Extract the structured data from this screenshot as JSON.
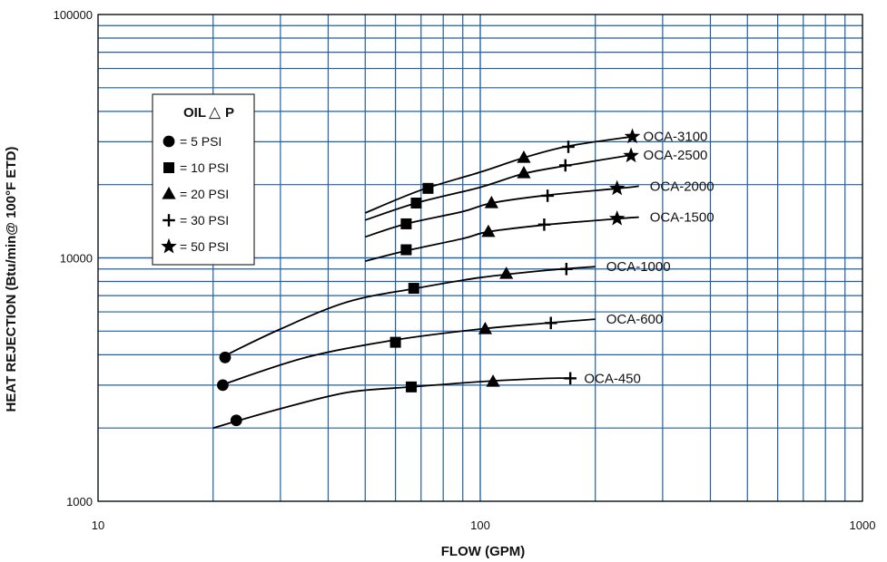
{
  "chart_data": {
    "type": "line",
    "xscale": "log",
    "yscale": "log",
    "xlim": [
      10,
      1000
    ],
    "ylim": [
      1000,
      100000
    ],
    "xlabel": "FLOW (GPM)",
    "ylabel": "HEAT REJECTION (Btu/min@ 100°F ETD)",
    "xticks": [
      "10",
      "100",
      "1000"
    ],
    "yticks": [
      "1000",
      "10000",
      "100000"
    ],
    "grid": true,
    "grid_color": "#1f5fa6",
    "line_color": "#000000",
    "legend": {
      "title_left": "OIL",
      "title_symbol": "△",
      "title_right": "P",
      "placement": "top-left",
      "items": [
        {
          "marker": "circle",
          "label": "= 5 PSI"
        },
        {
          "marker": "square",
          "label": "= 10 PSI"
        },
        {
          "marker": "triangle",
          "label": "= 20 PSI"
        },
        {
          "marker": "plus",
          "label": "= 30 PSI"
        },
        {
          "marker": "star",
          "label": "= 50 PSI"
        }
      ]
    },
    "series": [
      {
        "name": "OCA-3100",
        "curve": [
          [
            50,
            15300
          ],
          [
            70,
            19000
          ],
          [
            100,
            22500
          ],
          [
            130,
            25800
          ],
          [
            170,
            28800
          ],
          [
            250,
            31500
          ]
        ],
        "markers": [
          {
            "x": 73,
            "y": 19300,
            "marker": "square"
          },
          {
            "x": 130,
            "y": 25800,
            "marker": "triangle"
          },
          {
            "x": 170,
            "y": 28600,
            "marker": "plus"
          },
          {
            "x": 250,
            "y": 31500,
            "marker": "star"
          }
        ]
      },
      {
        "name": "OCA-2500",
        "curve": [
          [
            50,
            14300
          ],
          [
            68,
            16800
          ],
          [
            100,
            19500
          ],
          [
            130,
            22200
          ],
          [
            170,
            24000
          ],
          [
            250,
            26500
          ]
        ],
        "markers": [
          {
            "x": 68,
            "y": 16800,
            "marker": "square"
          },
          {
            "x": 130,
            "y": 22300,
            "marker": "triangle"
          },
          {
            "x": 167,
            "y": 24000,
            "marker": "plus"
          },
          {
            "x": 248,
            "y": 26300,
            "marker": "star"
          }
        ]
      },
      {
        "name": "OCA-2000",
        "curve": [
          [
            50,
            12200
          ],
          [
            64,
            13800
          ],
          [
            90,
            15500
          ],
          [
            107,
            16800
          ],
          [
            150,
            18100
          ],
          [
            230,
            19300
          ],
          [
            260,
            19700
          ]
        ],
        "markers": [
          {
            "x": 64,
            "y": 13800,
            "marker": "square"
          },
          {
            "x": 107,
            "y": 16800,
            "marker": "triangle"
          },
          {
            "x": 150,
            "y": 18000,
            "marker": "plus"
          },
          {
            "x": 228,
            "y": 19300,
            "marker": "star"
          }
        ]
      },
      {
        "name": "OCA-1500",
        "curve": [
          [
            50,
            9700
          ],
          [
            64,
            10700
          ],
          [
            90,
            12000
          ],
          [
            105,
            12800
          ],
          [
            150,
            13700
          ],
          [
            230,
            14500
          ],
          [
            260,
            14700
          ]
        ],
        "markers": [
          {
            "x": 64,
            "y": 10800,
            "marker": "square"
          },
          {
            "x": 105,
            "y": 12800,
            "marker": "triangle"
          },
          {
            "x": 147,
            "y": 13700,
            "marker": "plus"
          },
          {
            "x": 228,
            "y": 14500,
            "marker": "star"
          }
        ]
      },
      {
        "name": "OCA-1000",
        "curve": [
          [
            21,
            3900
          ],
          [
            30,
            5100
          ],
          [
            45,
            6600
          ],
          [
            68,
            7500
          ],
          [
            100,
            8300
          ],
          [
            150,
            8900
          ],
          [
            200,
            9200
          ]
        ],
        "markers": [
          {
            "x": 21.5,
            "y": 3900,
            "marker": "circle"
          },
          {
            "x": 67,
            "y": 7500,
            "marker": "square"
          },
          {
            "x": 117,
            "y": 8600,
            "marker": "triangle"
          },
          {
            "x": 168,
            "y": 9000,
            "marker": "plus"
          }
        ]
      },
      {
        "name": "OCA-600",
        "curve": [
          [
            21,
            3000
          ],
          [
            35,
            3900
          ],
          [
            60,
            4600
          ],
          [
            100,
            5100
          ],
          [
            150,
            5400
          ],
          [
            200,
            5600
          ]
        ],
        "markers": [
          {
            "x": 21.2,
            "y": 3000,
            "marker": "circle"
          },
          {
            "x": 60,
            "y": 4500,
            "marker": "square"
          },
          {
            "x": 103,
            "y": 5100,
            "marker": "triangle"
          },
          {
            "x": 153,
            "y": 5400,
            "marker": "plus"
          }
        ]
      },
      {
        "name": "OCA-450",
        "curve": [
          [
            20,
            2000
          ],
          [
            30,
            2400
          ],
          [
            45,
            2800
          ],
          [
            66,
            2950
          ],
          [
            100,
            3100
          ],
          [
            150,
            3200
          ],
          [
            175,
            3200
          ]
        ],
        "markers": [
          {
            "x": 23,
            "y": 2150,
            "marker": "circle"
          },
          {
            "x": 66,
            "y": 2950,
            "marker": "square"
          },
          {
            "x": 108,
            "y": 3100,
            "marker": "triangle"
          },
          {
            "x": 172,
            "y": 3200,
            "marker": "plus"
          }
        ]
      }
    ]
  }
}
